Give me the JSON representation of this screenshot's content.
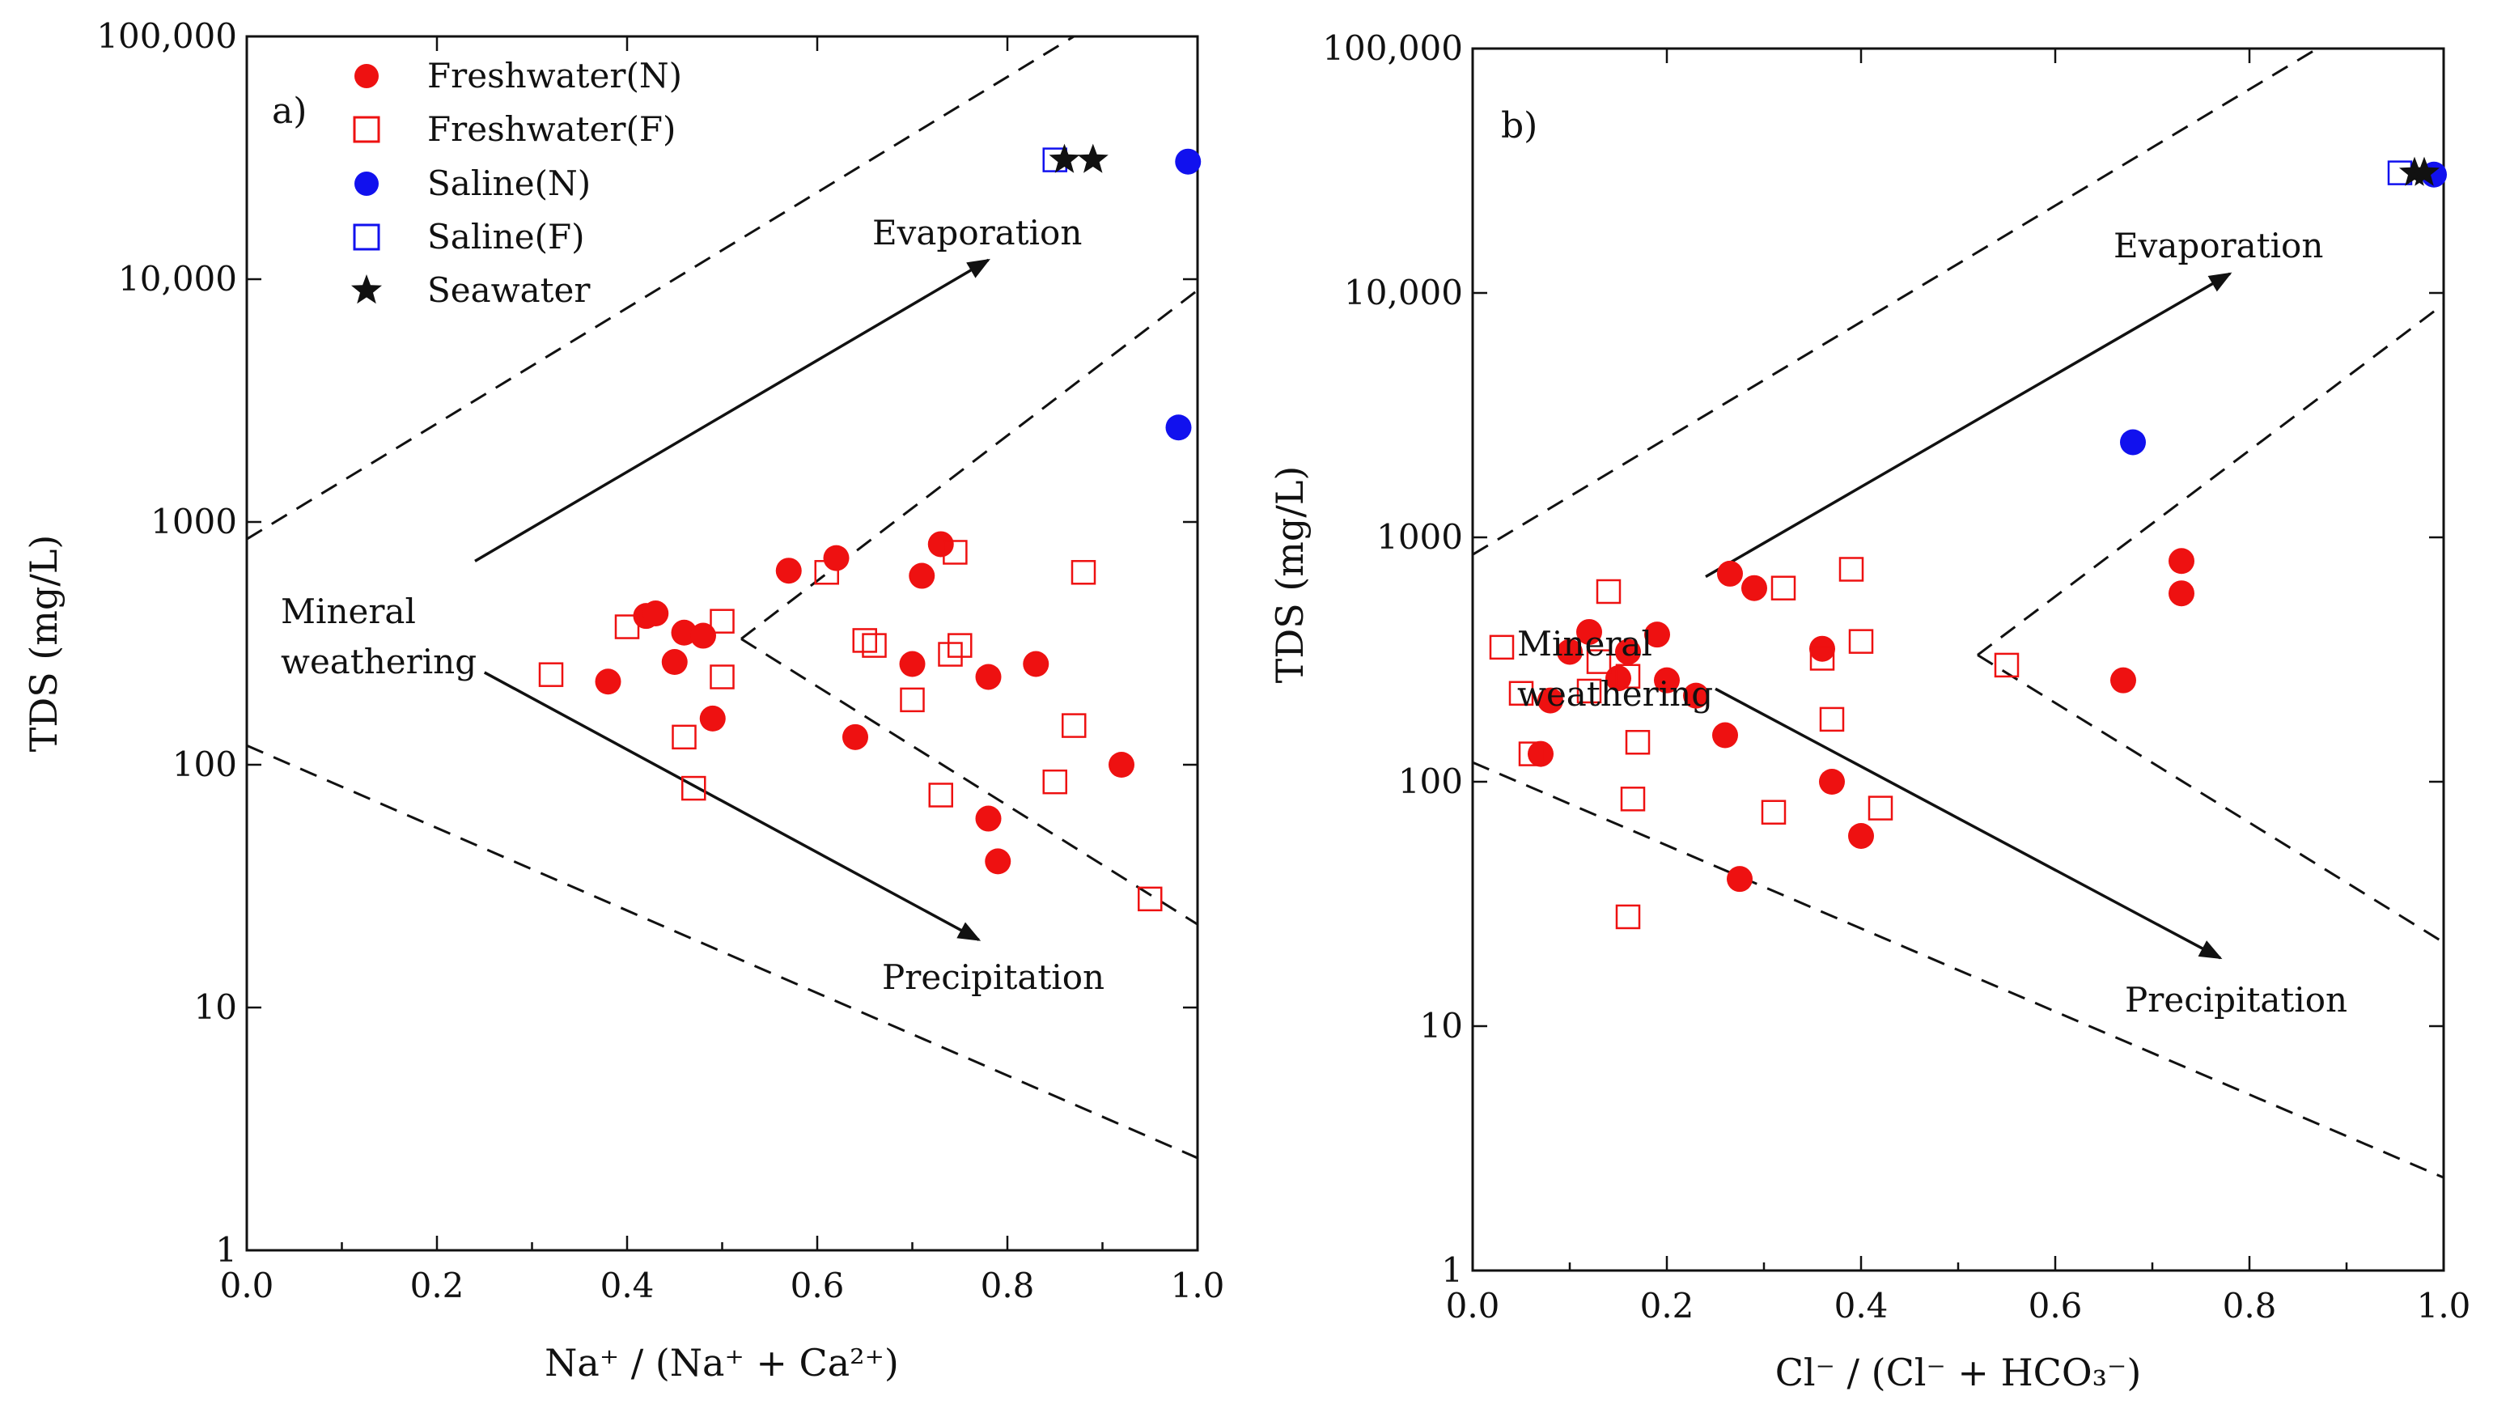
{
  "chart_data": [
    {
      "type": "scatter",
      "panel_label": "a)",
      "title": "",
      "xlabel": "Na⁺ / (Na⁺ + Ca²⁺)",
      "ylabel": "TDS (mg/L)",
      "xlim": [
        0,
        1
      ],
      "ylim": [
        1,
        100000
      ],
      "yscale": "log",
      "x_ticks": [
        "0.0",
        "0.2",
        "0.4",
        "0.6",
        "0.8",
        "1.0"
      ],
      "y_ticks": [
        "1",
        "10",
        "100",
        "1000",
        "10,000",
        "100,000"
      ],
      "legend": {
        "position": "top-left",
        "entries": [
          {
            "label": "Freshwater(N)",
            "marker": "circle-filled",
            "color": "#ee1111"
          },
          {
            "label": "Freshwater(F)",
            "marker": "square-open",
            "color": "#ee1111"
          },
          {
            "label": "Saline(N)",
            "marker": "circle-filled",
            "color": "#1111ee"
          },
          {
            "label": "Saline(F)",
            "marker": "square-open",
            "color": "#1111ee"
          },
          {
            "label": "Seawater",
            "marker": "star",
            "color": "#111111"
          }
        ]
      },
      "annotations": {
        "evaporation": "Evaporation",
        "mineral": "Mineral",
        "weathering": "weathering",
        "precipitation": "Precipitation"
      },
      "guides": [
        {
          "kind": "dashed",
          "points": [
            [
              0.0,
              850
            ],
            [
              0.87,
              100000
            ]
          ]
        },
        {
          "kind": "dashed",
          "points": [
            [
              0.52,
              330
            ],
            [
              1.0,
              9000
            ]
          ]
        },
        {
          "kind": "dashed",
          "points": [
            [
              0.52,
              330
            ],
            [
              1.0,
              22
            ]
          ]
        },
        {
          "kind": "dashed",
          "points": [
            [
              0.0,
              120
            ],
            [
              1.0,
              2.4
            ]
          ]
        },
        {
          "kind": "arrow",
          "points": [
            [
              0.24,
              690
            ],
            [
              0.78,
              12000
            ]
          ]
        },
        {
          "kind": "arrow",
          "points": [
            [
              0.25,
              240
            ],
            [
              0.77,
              19
            ]
          ]
        }
      ],
      "series": [
        {
          "name": "Freshwater(N)",
          "points": [
            [
              0.38,
              220
            ],
            [
              0.42,
              410
            ],
            [
              0.43,
              420
            ],
            [
              0.45,
              265
            ],
            [
              0.46,
              350
            ],
            [
              0.48,
              340
            ],
            [
              0.49,
              155
            ],
            [
              0.57,
              630
            ],
            [
              0.62,
              710
            ],
            [
              0.64,
              130
            ],
            [
              0.7,
              260
            ],
            [
              0.71,
              600
            ],
            [
              0.73,
              810
            ],
            [
              0.78,
              230
            ],
            [
              0.78,
              60
            ],
            [
              0.79,
              40
            ],
            [
              0.83,
              260
            ],
            [
              0.92,
              100
            ]
          ]
        },
        {
          "name": "Freshwater(F)",
          "points": [
            [
              0.32,
              235
            ],
            [
              0.4,
              370
            ],
            [
              0.46,
              130
            ],
            [
              0.47,
              80
            ],
            [
              0.5,
              390
            ],
            [
              0.5,
              230
            ],
            [
              0.61,
              620
            ],
            [
              0.65,
              325
            ],
            [
              0.66,
              310
            ],
            [
              0.7,
              185
            ],
            [
              0.73,
              75
            ],
            [
              0.74,
              285
            ],
            [
              0.745,
              750
            ],
            [
              0.75,
              310
            ],
            [
              0.85,
              85
            ],
            [
              0.87,
              145
            ],
            [
              0.88,
              620
            ],
            [
              0.95,
              28
            ]
          ]
        },
        {
          "name": "Saline(N)",
          "points": [
            [
              0.98,
              2450
            ],
            [
              0.99,
              30500
            ]
          ]
        },
        {
          "name": "Saline(F)",
          "points": [
            [
              0.85,
              31000
            ]
          ]
        },
        {
          "name": "Seawater",
          "points": [
            [
              0.86,
              31000
            ],
            [
              0.89,
              31000
            ]
          ]
        }
      ]
    },
    {
      "type": "scatter",
      "panel_label": "b)",
      "title": "",
      "xlabel": "Cl⁻ / (Cl⁻ + HCO₃⁻)",
      "ylabel": "TDS (mg/L)",
      "xlim": [
        0,
        1
      ],
      "ylim": [
        1,
        100000
      ],
      "yscale": "log",
      "x_ticks": [
        "0.0",
        "0.2",
        "0.4",
        "0.6",
        "0.8",
        "1.0"
      ],
      "y_ticks": [
        "1",
        "10",
        "100",
        "1000",
        "10,000",
        "100,000"
      ],
      "annotations": {
        "evaporation": "Evaporation",
        "mineral": "Mineral",
        "weathering": "weathering",
        "precipitation": "Precipitation"
      },
      "guides": [
        {
          "kind": "dashed",
          "points": [
            [
              0.0,
              850
            ],
            [
              0.87,
              100000
            ]
          ]
        },
        {
          "kind": "dashed",
          "points": [
            [
              0.52,
              330
            ],
            [
              1.0,
              9000
            ]
          ]
        },
        {
          "kind": "dashed",
          "points": [
            [
              0.52,
              330
            ],
            [
              1.0,
              22
            ]
          ]
        },
        {
          "kind": "dashed",
          "points": [
            [
              0.0,
              120
            ],
            [
              1.0,
              2.4
            ]
          ]
        },
        {
          "kind": "arrow",
          "points": [
            [
              0.24,
              690
            ],
            [
              0.78,
              12000
            ]
          ]
        },
        {
          "kind": "arrow",
          "points": [
            [
              0.25,
              240
            ],
            [
              0.77,
              19
            ]
          ]
        }
      ],
      "series": [
        {
          "name": "Freshwater(N)",
          "points": [
            [
              0.07,
              130
            ],
            [
              0.08,
              215
            ],
            [
              0.1,
              340
            ],
            [
              0.12,
              410
            ],
            [
              0.15,
              265
            ],
            [
              0.16,
              340
            ],
            [
              0.19,
              400
            ],
            [
              0.2,
              260
            ],
            [
              0.23,
              225
            ],
            [
              0.26,
              155
            ],
            [
              0.265,
              710
            ],
            [
              0.275,
              40
            ],
            [
              0.29,
              620
            ],
            [
              0.36,
              350
            ],
            [
              0.37,
              100
            ],
            [
              0.4,
              60
            ],
            [
              0.67,
              260
            ],
            [
              0.73,
              800
            ],
            [
              0.73,
              590
            ]
          ]
        },
        {
          "name": "Freshwater(F)",
          "points": [
            [
              0.03,
              355
            ],
            [
              0.05,
              230
            ],
            [
              0.06,
              130
            ],
            [
              0.12,
              235
            ],
            [
              0.13,
              310
            ],
            [
              0.14,
              600
            ],
            [
              0.16,
              270
            ],
            [
              0.165,
              85
            ],
            [
              0.16,
              28
            ],
            [
              0.17,
              145
            ],
            [
              0.31,
              75
            ],
            [
              0.32,
              620
            ],
            [
              0.36,
              320
            ],
            [
              0.37,
              180
            ],
            [
              0.39,
              740
            ],
            [
              0.4,
              375
            ],
            [
              0.42,
              78
            ],
            [
              0.55,
              300
            ]
          ]
        },
        {
          "name": "Saline(N)",
          "points": [
            [
              0.68,
              2450
            ],
            [
              0.99,
              30500
            ]
          ]
        },
        {
          "name": "Saline(F)",
          "points": [
            [
              0.955,
              31000
            ]
          ]
        },
        {
          "name": "Seawater",
          "points": [
            [
              0.97,
              31000
            ],
            [
              0.98,
              31000
            ]
          ]
        }
      ]
    }
  ]
}
